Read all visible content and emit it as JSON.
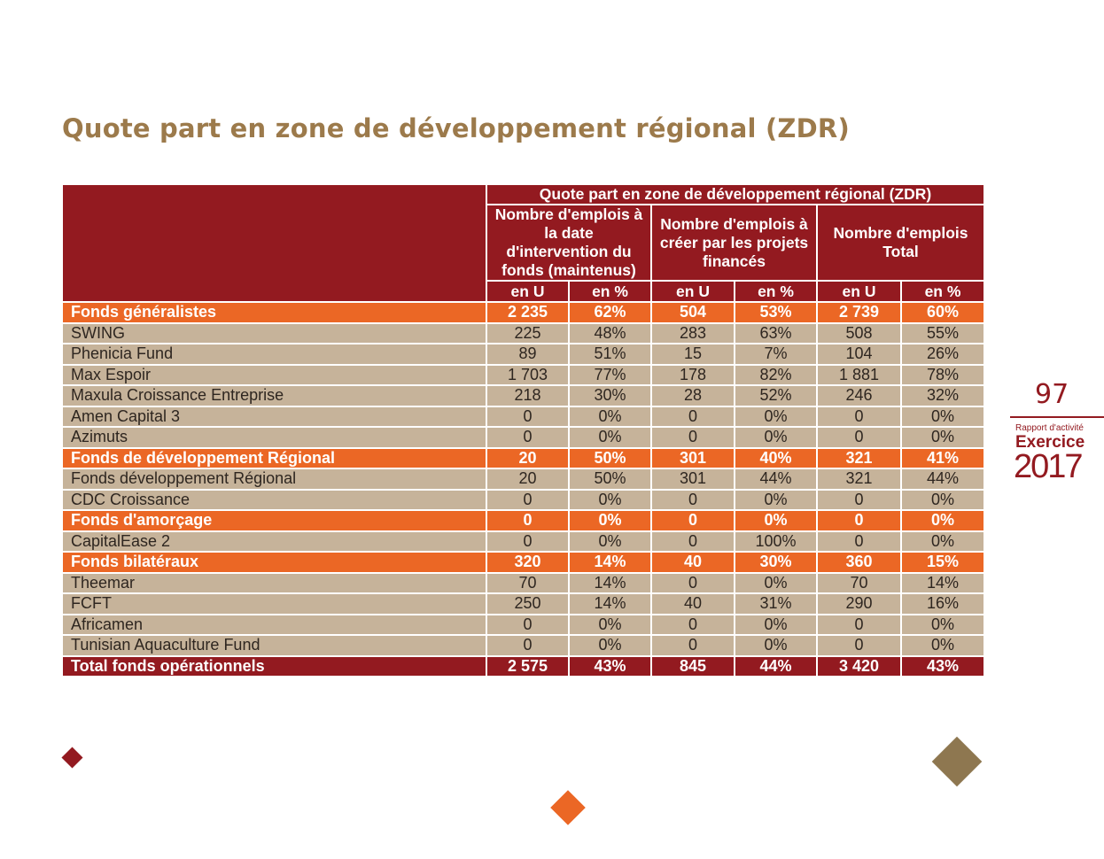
{
  "page": {
    "title": "Quote part en zone de développement régional (ZDR)",
    "page_number": "97",
    "report_label": "Rapport d'activité",
    "exercise_label": "Exercice",
    "year": "2017",
    "colors": {
      "title": "#9c7a4b",
      "header": "#931a20",
      "category": "#eb6725",
      "detail": "#c6b39a",
      "gold": "#8e7750"
    }
  },
  "table": {
    "group_header": "Quote part en zone de développement régional (ZDR)",
    "column_groups": [
      "Nombre d'emplois à la date d'intervention du fonds (maintenus)",
      "Nombre d'emplois à créer par les projets financés",
      "Nombre d'emplois Total"
    ],
    "unit_headers": [
      "en U",
      "en %",
      "en U",
      "en %",
      "en U",
      "en %"
    ],
    "rows": [
      {
        "type": "category",
        "label": "Fonds généralistes",
        "values": [
          "2 235",
          "62%",
          "504",
          "53%",
          "2 739",
          "60%"
        ]
      },
      {
        "type": "detail",
        "label": "SWING",
        "values": [
          "225",
          "48%",
          "283",
          "63%",
          "508",
          "55%"
        ]
      },
      {
        "type": "detail",
        "label": "Phenicia Fund",
        "values": [
          "89",
          "51%",
          "15",
          "7%",
          "104",
          "26%"
        ]
      },
      {
        "type": "detail",
        "label": "Max Espoir",
        "values": [
          "1 703",
          "77%",
          "178",
          "82%",
          "1 881",
          "78%"
        ]
      },
      {
        "type": "detail",
        "label": "Maxula Croissance Entreprise",
        "values": [
          "218",
          "30%",
          "28",
          "52%",
          "246",
          "32%"
        ]
      },
      {
        "type": "detail",
        "label": "Amen Capital 3",
        "values": [
          "0",
          "0%",
          "0",
          "0%",
          "0",
          "0%"
        ]
      },
      {
        "type": "detail",
        "label": "Azimuts",
        "values": [
          "0",
          "0%",
          "0",
          "0%",
          "0",
          "0%"
        ]
      },
      {
        "type": "category",
        "label": "Fonds de développement Régional",
        "values": [
          "20",
          "50%",
          "301",
          "40%",
          "321",
          "41%"
        ]
      },
      {
        "type": "detail",
        "label": "Fonds développement Régional",
        "values": [
          "20",
          "50%",
          "301",
          "44%",
          "321",
          "44%"
        ]
      },
      {
        "type": "detail",
        "label": "CDC Croissance",
        "values": [
          "0",
          "0%",
          "0",
          "0%",
          "0",
          "0%"
        ]
      },
      {
        "type": "category",
        "label": "Fonds d'amorçage",
        "values": [
          "0",
          "0%",
          "0",
          "0%",
          "0",
          "0%"
        ]
      },
      {
        "type": "detail",
        "label": "CapitalEase 2",
        "values": [
          "0",
          "0%",
          "0",
          "100%",
          "0",
          "0%"
        ]
      },
      {
        "type": "category",
        "label": "Fonds bilatéraux",
        "values": [
          "320",
          "14%",
          "40",
          "30%",
          "360",
          "15%"
        ]
      },
      {
        "type": "detail",
        "label": "Theemar",
        "values": [
          "70",
          "14%",
          "0",
          "0%",
          "70",
          "14%"
        ]
      },
      {
        "type": "detail",
        "label": "FCFT",
        "values": [
          "250",
          "14%",
          "40",
          "31%",
          "290",
          "16%"
        ]
      },
      {
        "type": "detail",
        "label": "Africamen",
        "values": [
          "0",
          "0%",
          "0",
          "0%",
          "0",
          "0%"
        ]
      },
      {
        "type": "detail",
        "label": "Tunisian Aquaculture Fund",
        "values": [
          "0",
          "0%",
          "0",
          "0%",
          "0",
          "0%"
        ]
      },
      {
        "type": "total",
        "label": "Total fonds opérationnels",
        "values": [
          "2 575",
          "43%",
          "845",
          "44%",
          "3 420",
          "43%"
        ]
      }
    ]
  }
}
